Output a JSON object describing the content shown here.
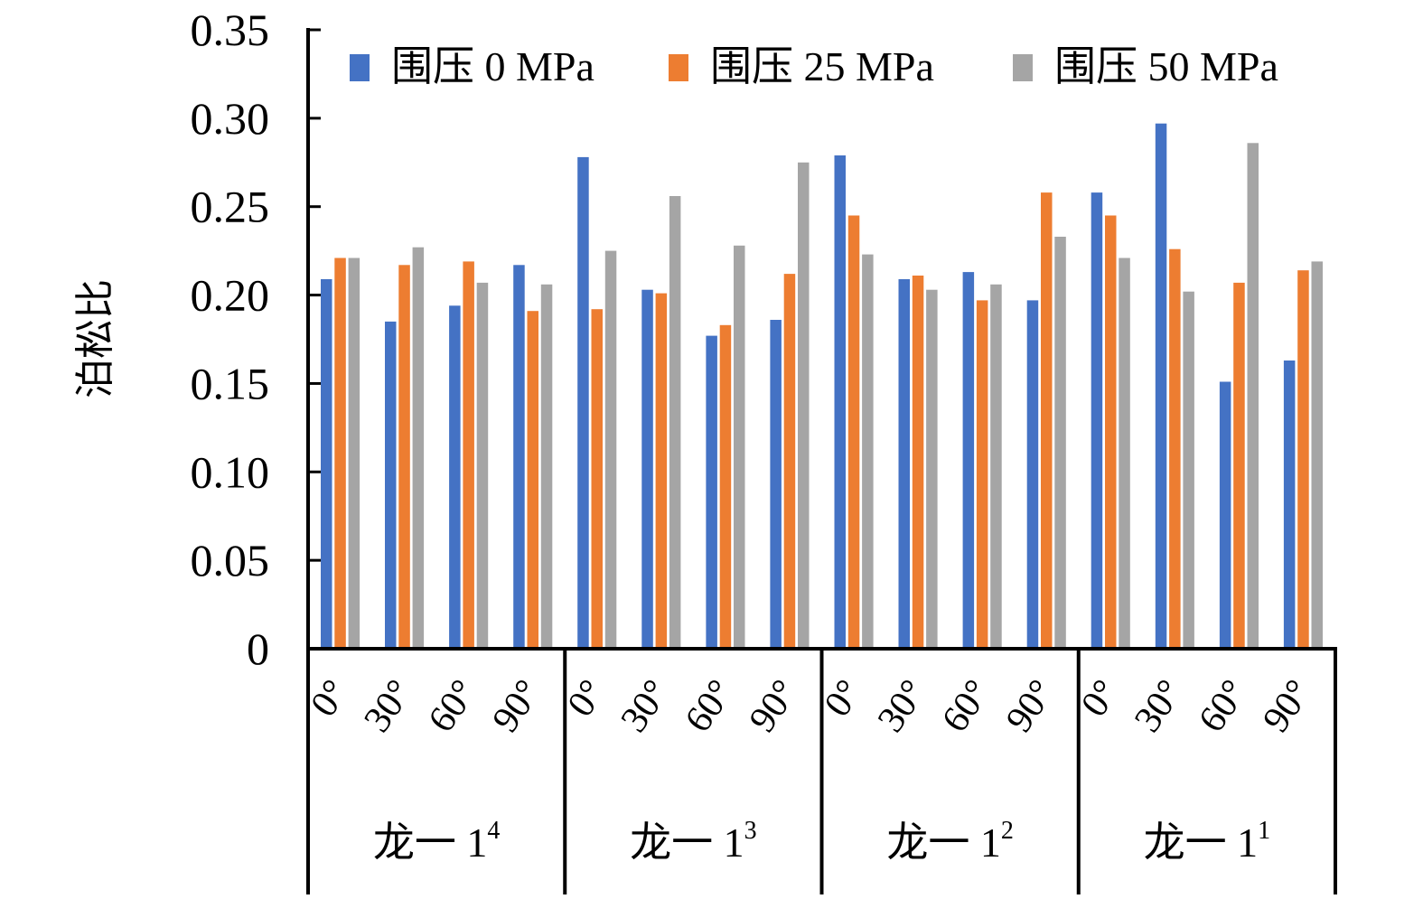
{
  "chart_data": {
    "type": "bar",
    "ylabel": "泊松比",
    "ylim": [
      0,
      0.35
    ],
    "yticks": [
      "0",
      "0.05",
      "0.10",
      "0.15",
      "0.20",
      "0.25",
      "0.30",
      "0.35"
    ],
    "legend_position": "top",
    "groups": [
      {
        "name": "龙一 1",
        "sup": "4"
      },
      {
        "name": "龙一 1",
        "sup": "3"
      },
      {
        "name": "龙一 1",
        "sup": "2"
      },
      {
        "name": "龙一 1",
        "sup": "1"
      }
    ],
    "angles": [
      "0°",
      "30°",
      "60°",
      "90°"
    ],
    "series": [
      {
        "name": "围压 0 MPa",
        "color": "#4472C4",
        "values": [
          0.209,
          0.185,
          0.194,
          0.217,
          0.278,
          0.203,
          0.177,
          0.186,
          0.279,
          0.209,
          0.213,
          0.197,
          0.258,
          0.297,
          0.151,
          0.163
        ]
      },
      {
        "name": "围压 25 MPa",
        "color": "#ED7D31",
        "values": [
          0.221,
          0.217,
          0.219,
          0.191,
          0.192,
          0.201,
          0.183,
          0.212,
          0.245,
          0.211,
          0.197,
          0.258,
          0.245,
          0.226,
          0.207,
          0.214
        ]
      },
      {
        "name": "围压 50 MPa",
        "color": "#A5A5A5",
        "values": [
          0.221,
          0.227,
          0.207,
          0.206,
          0.225,
          0.256,
          0.228,
          0.275,
          0.223,
          0.203,
          0.206,
          0.233,
          0.221,
          0.202,
          0.286,
          0.219
        ]
      }
    ]
  }
}
